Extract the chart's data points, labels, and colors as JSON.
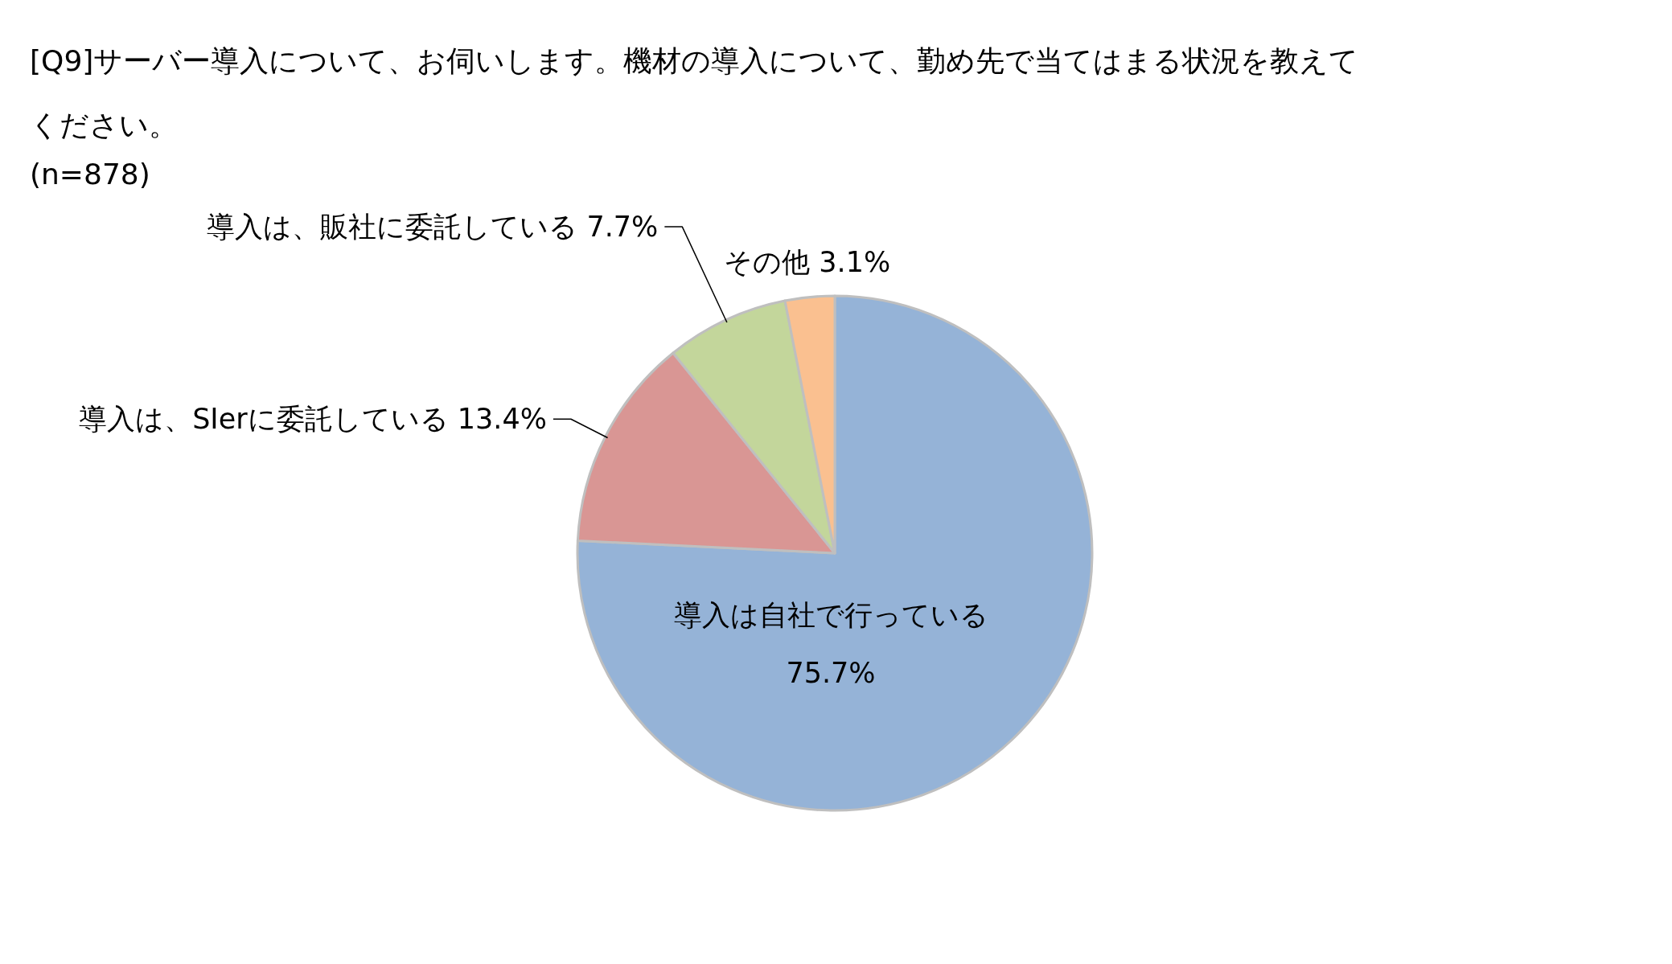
{
  "chart_data": {
    "type": "pie",
    "title": "[Q9]サーバー導入について、お伺いします。機材の導入について、勤め先で当てはまる状況を教えてください。",
    "subtitle": "(n=878)",
    "categories": [
      "導入は自社で行っている",
      "導入は、SIerに委託している",
      "導入は、販社に委託している",
      "その他"
    ],
    "values": [
      75.7,
      13.4,
      7.7,
      3.1
    ],
    "colors": [
      "#95b3d7",
      "#d99694",
      "#c3d69b",
      "#fac090"
    ],
    "value_labels": [
      "75.7%",
      "13.4%",
      "7.7%",
      "3.1%"
    ]
  }
}
